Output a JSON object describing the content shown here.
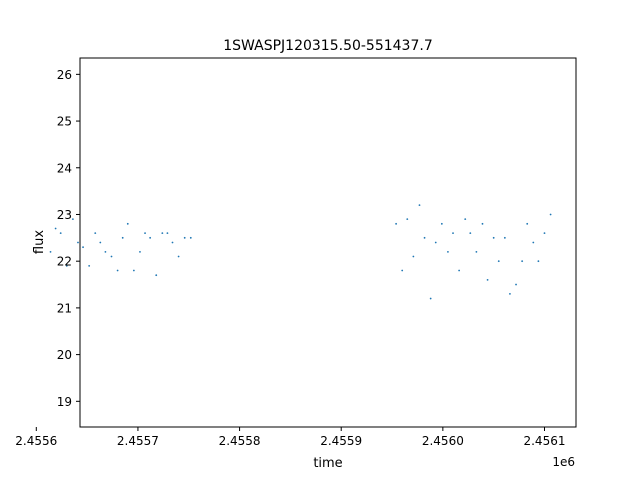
{
  "chart_data": {
    "type": "scatter",
    "title": "1SWASPJ120315.50-551437.7",
    "xlabel": "time",
    "ylabel": "flux",
    "x_offset_label": "1e6",
    "xlim": [
      2455643,
      2456131
    ],
    "ylim": [
      18.45,
      26.35
    ],
    "xticks": [
      2455600,
      2455700,
      2455800,
      2455900,
      2456000,
      2456100
    ],
    "xtick_labels": [
      "2.4556",
      "2.4557",
      "2.4558",
      "2.4559",
      "2.4560",
      "2.4561"
    ],
    "yticks": [
      19,
      20,
      21,
      22,
      23,
      24,
      25,
      26
    ],
    "ytick_labels": [
      "19",
      "20",
      "21",
      "22",
      "23",
      "24",
      "25",
      "26"
    ],
    "grid": false,
    "marker_color": "#1f77b4",
    "segments": [
      {
        "x": [
          2455614,
          2455619,
          2455624,
          2455630,
          2455636,
          2455641,
          2455646,
          2455652,
          2455658,
          2455663,
          2455668,
          2455674,
          2455680,
          2455685,
          2455690,
          2455696,
          2455702,
          2455707,
          2455712,
          2455718,
          2455724,
          2455729,
          2455734,
          2455740,
          2455746,
          2455752
        ],
        "y": [
          22.2,
          22.7,
          22.6,
          21.9,
          22.9,
          22.4,
          22.3,
          21.9,
          22.6,
          22.4,
          22.2,
          22.1,
          21.8,
          22.5,
          22.8,
          21.8,
          22.2,
          22.6,
          22.5,
          21.7,
          22.6,
          22.6,
          22.4,
          22.1,
          22.5,
          22.5
        ]
      },
      {
        "x": [
          2455954,
          2455960,
          2455965,
          2455971,
          2455977,
          2455982,
          2455988,
          2455993,
          2455999,
          2456005,
          2456010,
          2456016,
          2456022,
          2456027,
          2456033,
          2456039,
          2456044,
          2456050,
          2456055,
          2456061,
          2456066,
          2456072,
          2456078,
          2456083,
          2456089,
          2456094,
          2456100,
          2456106
        ],
        "y": [
          22.8,
          21.8,
          22.9,
          22.1,
          23.2,
          22.5,
          21.2,
          22.4,
          22.8,
          22.2,
          22.6,
          21.8,
          22.9,
          22.6,
          22.2,
          22.8,
          21.6,
          22.5,
          22.0,
          22.5,
          21.3,
          21.5,
          22.0,
          22.8,
          22.4,
          22.0,
          22.6,
          23.0
        ]
      }
    ]
  }
}
